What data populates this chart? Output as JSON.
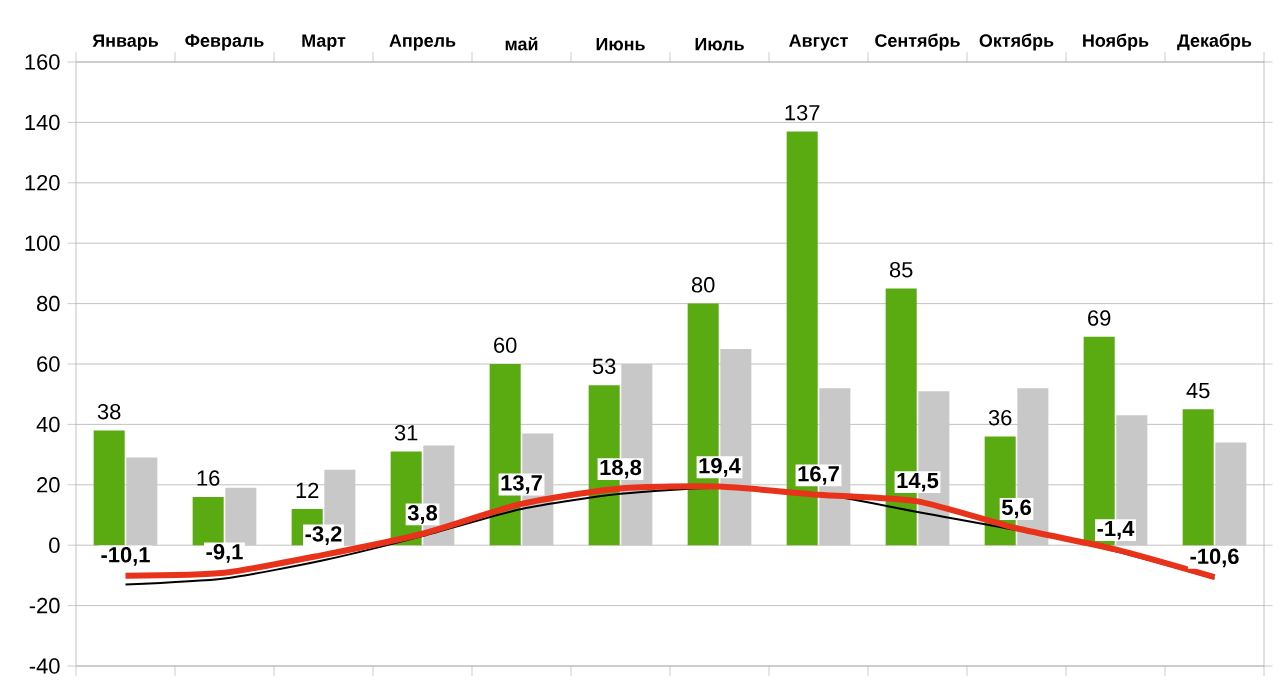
{
  "chart_data": {
    "type": "bar",
    "categories": [
      "Январь",
      "Февраль",
      "Март",
      "Апрель",
      "май",
      "Июнь",
      "Июль",
      "Август",
      "Сентябрь",
      "Октябрь",
      "Ноябрь",
      "Декабрь"
    ],
    "ylim": [
      -40,
      160
    ],
    "yticks": [
      -40,
      -20,
      0,
      20,
      40,
      60,
      80,
      100,
      120,
      140,
      160
    ],
    "grid": "y",
    "series": [
      {
        "color": "#5aab12",
        "values": [
          38,
          16,
          12,
          31,
          60,
          53,
          80,
          137,
          85,
          36,
          69,
          45
        ],
        "value_labels": [
          "38",
          "16",
          "12",
          "31",
          "60",
          "53",
          "80",
          "137",
          "85",
          "36",
          "69",
          "45"
        ]
      },
      {
        "color": "#c8c8c8",
        "values": [
          29,
          19,
          25,
          33,
          37,
          60,
          65,
          52,
          51,
          52,
          43,
          34
        ]
      },
      {
        "type": "line",
        "color": "#e8321a",
        "values": [
          -10.1,
          -9.1,
          -3.2,
          3.8,
          13.7,
          18.8,
          19.4,
          16.7,
          14.5,
          5.6,
          -1.4,
          -10.6
        ],
        "value_labels": [
          "-10,1",
          "-9,1",
          "-3,2",
          "3,8",
          "13,7",
          "18,8",
          "19,4",
          "16,7",
          "14,5",
          "5,6",
          "-1,4",
          "-10,6"
        ]
      },
      {
        "type": "line",
        "color": "#000000",
        "values": [
          -13,
          -11,
          -5,
          3,
          12,
          17,
          19,
          17,
          11,
          5,
          -2,
          -11
        ]
      }
    ]
  }
}
